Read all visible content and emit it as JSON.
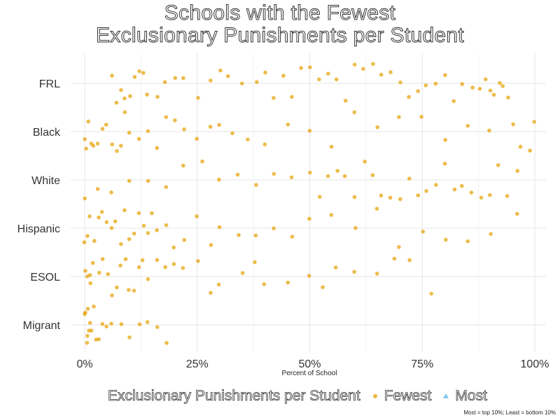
{
  "title_line1": "Schools with the Fewest",
  "title_line2": "Exclusionary Punishments per Student",
  "caption": "Most = top 10%; Least = bottom 10%",
  "legend": {
    "title": "Exclusionary Punishments per Student",
    "items": [
      {
        "label": "Fewest",
        "shape": "circle",
        "color": "#E69F00"
      },
      {
        "label": "Most",
        "shape": "triangle",
        "color": "#56B4E9"
      }
    ]
  },
  "chart_data": {
    "type": "scatter",
    "subtype": "jittered strip plot",
    "xlabel": "Percent of School",
    "ylabel": "",
    "xlim": [
      0,
      1
    ],
    "x_ticks": [
      0,
      0.25,
      0.5,
      0.75,
      1.0
    ],
    "x_tick_labels": [
      "0%",
      "25%",
      "50%",
      "75%",
      "100%"
    ],
    "categories": [
      "FRL",
      "Black",
      "White",
      "Hispanic",
      "ESOL",
      "Migrant"
    ],
    "grid": true,
    "legend_position": "bottom",
    "point_color": "#E69F00",
    "series": [
      {
        "name": "Fewest",
        "color": "#E69F00",
        "shape": "circle",
        "points_by_category": {
          "FRL": [
            0.06,
            0.07,
            0.08,
            0.09,
            0.1,
            0.11,
            0.12,
            0.13,
            0.14,
            0.16,
            0.18,
            0.2,
            0.22,
            0.25,
            0.28,
            0.3,
            0.32,
            0.35,
            0.38,
            0.4,
            0.42,
            0.44,
            0.46,
            0.48,
            0.5,
            0.52,
            0.54,
            0.56,
            0.58,
            0.6,
            0.62,
            0.64,
            0.66,
            0.68,
            0.7,
            0.72,
            0.74,
            0.76,
            0.78,
            0.8,
            0.82,
            0.84,
            0.86,
            0.88,
            0.89,
            0.9,
            0.91,
            0.92,
            0.93,
            0.94
          ],
          "Black": [
            0.0,
            0.005,
            0.01,
            0.015,
            0.02,
            0.03,
            0.04,
            0.05,
            0.06,
            0.07,
            0.08,
            0.09,
            0.1,
            0.12,
            0.14,
            0.16,
            0.18,
            0.2,
            0.22,
            0.25,
            0.28,
            0.3,
            0.33,
            0.36,
            0.4,
            0.45,
            0.5,
            0.55,
            0.6,
            0.65,
            0.7,
            0.75,
            0.8,
            0.85,
            0.9,
            0.95,
            0.97,
            0.99,
            1.0
          ],
          "White": [
            0.0,
            0.03,
            0.06,
            0.1,
            0.14,
            0.18,
            0.22,
            0.26,
            0.3,
            0.34,
            0.38,
            0.42,
            0.46,
            0.5,
            0.52,
            0.54,
            0.56,
            0.58,
            0.6,
            0.62,
            0.64,
            0.66,
            0.68,
            0.7,
            0.72,
            0.74,
            0.76,
            0.78,
            0.8,
            0.82,
            0.84,
            0.86,
            0.88,
            0.9,
            0.92,
            0.94,
            0.96
          ],
          "Hispanic": [
            0.0,
            0.005,
            0.01,
            0.02,
            0.03,
            0.04,
            0.05,
            0.06,
            0.07,
            0.08,
            0.09,
            0.1,
            0.11,
            0.12,
            0.13,
            0.14,
            0.15,
            0.16,
            0.18,
            0.2,
            0.22,
            0.25,
            0.28,
            0.3,
            0.34,
            0.38,
            0.42,
            0.46,
            0.5,
            0.55,
            0.6,
            0.65,
            0.7,
            0.75,
            0.8,
            0.85,
            0.9,
            0.96
          ],
          "ESOL": [
            0.0,
            0.005,
            0.01,
            0.015,
            0.02,
            0.03,
            0.04,
            0.05,
            0.06,
            0.07,
            0.08,
            0.09,
            0.1,
            0.11,
            0.12,
            0.13,
            0.14,
            0.16,
            0.18,
            0.2,
            0.22,
            0.25,
            0.28,
            0.3,
            0.35,
            0.38,
            0.4,
            0.45,
            0.5,
            0.53,
            0.56,
            0.6,
            0.65,
            0.69,
            0.72,
            0.77
          ],
          "Migrant": [
            0.0,
            0.002,
            0.004,
            0.006,
            0.008,
            0.01,
            0.012,
            0.015,
            0.02,
            0.025,
            0.03,
            0.04,
            0.05,
            0.06,
            0.08,
            0.1,
            0.12,
            0.14,
            0.16,
            0.18
          ]
        }
      }
    ]
  }
}
